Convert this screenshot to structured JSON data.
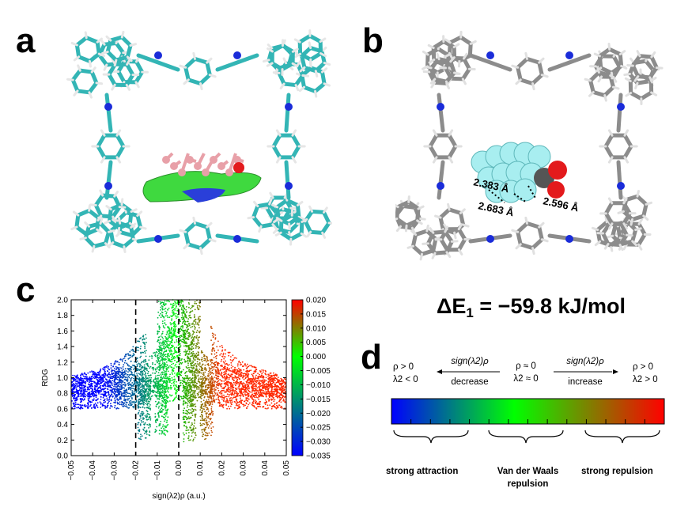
{
  "panels": {
    "a": "a",
    "b": "b",
    "c": "c",
    "d": "d"
  },
  "panel_b": {
    "distances": [
      "2.383 Å",
      "2.683 Å",
      "2.596 Å"
    ]
  },
  "energy": {
    "symbol": "ΔE",
    "subscript": "1",
    "value": "= −59.8 kJ/mol"
  },
  "colors": {
    "carbon_cyan": "#33b5b5",
    "carbon_gray": "#8c8c8c",
    "nitrogen": "#1a2cd9",
    "oxygen": "#e31a1c",
    "guest_pink": "#e8a0a8",
    "guest_cyan": "#a8eef0",
    "isosurface": "#3fd93f"
  },
  "chart_data": {
    "type": "scatter",
    "xlabel": "sign(λ2)ρ (a.u.)",
    "ylabel": "RDG",
    "xlim": [
      -0.05,
      0.05
    ],
    "ylim": [
      0.0,
      2.0
    ],
    "x_ticks": [
      "−0.05",
      "−0.04",
      "−0.03",
      "−0.02",
      "−0.01",
      "0.00",
      "0.01",
      "0.02",
      "0.03",
      "0.04",
      "0.05"
    ],
    "y_ticks": [
      "0.0",
      "0.2",
      "0.4",
      "0.6",
      "0.8",
      "1.0",
      "1.2",
      "1.4",
      "1.6",
      "1.8",
      "2.0"
    ],
    "colorbar": {
      "range": [
        -0.035,
        0.02
      ],
      "ticks": [
        "0.020",
        "0.015",
        "0.010",
        "0.005",
        "0.000",
        "−0.005",
        "−0.010",
        "−0.015",
        "−0.020",
        "−0.025",
        "−0.030",
        "−0.035"
      ],
      "colors": [
        "#0000ff",
        "#00ff00",
        "#ff0000"
      ]
    },
    "dashed_lines_x": [
      -0.02,
      0.0
    ],
    "spikes": [
      {
        "x": -0.016,
        "min_rdg": 0.2
      },
      {
        "x": -0.008,
        "min_rdg": 0.25
      },
      {
        "x": 0.005,
        "min_rdg": 0.15
      },
      {
        "x": 0.013,
        "min_rdg": 0.2
      }
    ]
  },
  "scale": {
    "left_top": "ρ > 0",
    "left_bottom": "λ2 < 0",
    "left_arrow_label": "sign(λ2)ρ",
    "left_arrow_sub": "decrease",
    "mid_top": "ρ ≈ 0",
    "mid_bottom": "λ2 ≈ 0",
    "right_arrow_label": "sign(λ2)ρ",
    "right_arrow_sub": "increase",
    "right_top": "ρ > 0",
    "right_bottom": "λ2 > 0",
    "label_left": "strong attraction",
    "label_mid_1": "Van der Waals",
    "label_mid_2": "repulsion",
    "label_right": "strong repulsion"
  }
}
